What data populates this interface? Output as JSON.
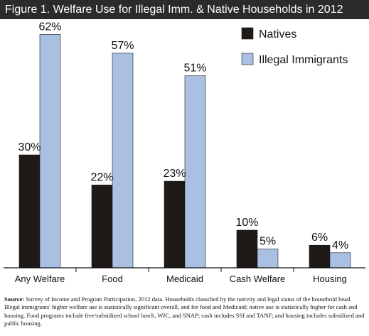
{
  "figure_title": "Figure 1. Welfare Use for Illegal Imm. & Native Households in 2012",
  "chart_data": {
    "type": "bar",
    "categories": [
      "Any Welfare",
      "Food",
      "Medicaid",
      "Cash Welfare",
      "Housing"
    ],
    "series": [
      {
        "name": "Natives",
        "values": [
          30,
          22,
          23,
          10,
          6
        ],
        "color": "#1f1a17"
      },
      {
        "name": "Illegal Immigrants",
        "values": [
          62,
          57,
          51,
          5,
          4
        ],
        "color": "#a9c0e3"
      }
    ],
    "value_labels": [
      [
        "30%",
        "22%",
        "23%",
        "10%",
        "6%"
      ],
      [
        "62%",
        "57%",
        "51%",
        "5%",
        "4%"
      ]
    ],
    "ylim": [
      0,
      100
    ],
    "legend_position": "top-right",
    "grid": false
  },
  "source": {
    "label": "Source:",
    "text": "Survey of Income and Program Participation, 2012 data. Households classified by the nativity and legal status of the household head. Illegal immigrants' higher welfare use is statistically significant overall, and for food and Medicaid; native use is statistically higher for cash and housing. Food programs include free/subsidized school lunch, WIC, and SNAP; cash includes SSI and TANF; and housing includes subsidized and public housing."
  }
}
